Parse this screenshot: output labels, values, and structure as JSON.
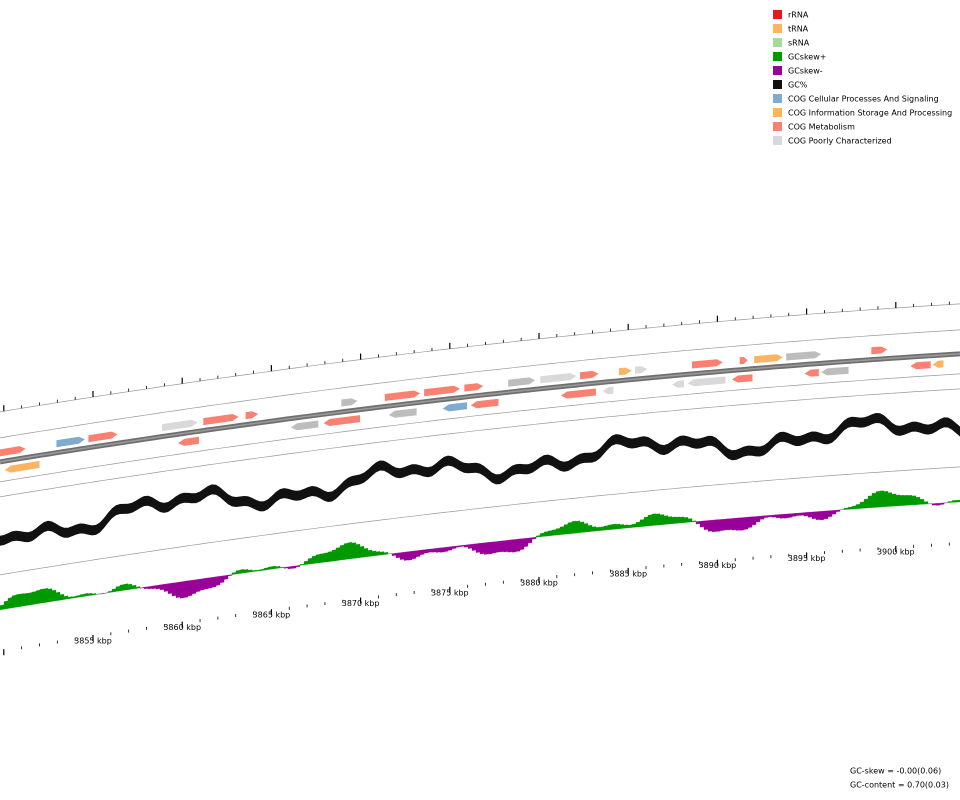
{
  "legend": {
    "items": [
      {
        "label": "rRNA",
        "color": "#e31a1c"
      },
      {
        "label": "tRNA",
        "color": "#fdb462"
      },
      {
        "label": "sRNA",
        "color": "#a6d99a"
      },
      {
        "label": "GCskew+",
        "color": "#009900"
      },
      {
        "label": "GCskew-",
        "color": "#990099"
      },
      {
        "label": "GC%",
        "color": "#111111"
      },
      {
        "label": "COG Cellular Processes And Signaling",
        "color": "#7fabd0"
      },
      {
        "label": "COG Information Storage And Processing",
        "color": "#fdb462"
      },
      {
        "label": "COG Metabolism",
        "color": "#fa8072"
      },
      {
        "label": "COG Poorly Characterized",
        "color": "#d9d9d9"
      }
    ]
  },
  "scale": {
    "labels": [
      "3855 kbp",
      "3860 kbp",
      "3865 kbp",
      "3870 kbp",
      "3875 kbp",
      "3880 kbp",
      "3885 kbp",
      "3890 kbp",
      "3895 kbp",
      "3900 kbp"
    ]
  },
  "stats": {
    "gc_skew": "GC-skew = -0.00(0.06)",
    "gc_content": "GC-content = 0.70(0.03)"
  }
}
